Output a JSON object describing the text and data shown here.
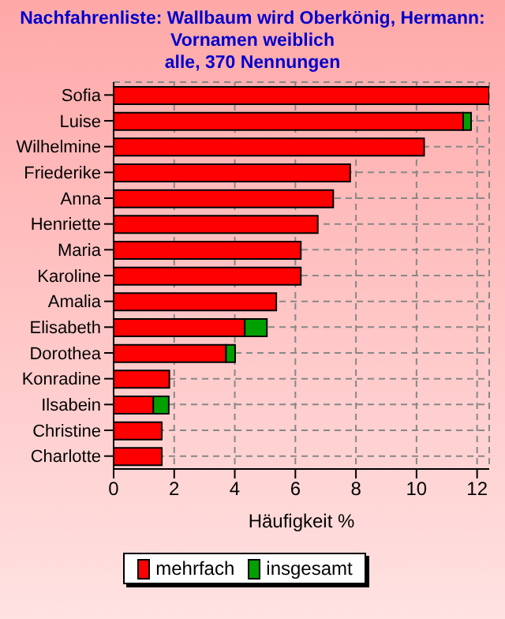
{
  "chart_data": {
    "type": "bar",
    "orientation": "horizontal",
    "stacked": true,
    "title": "Nachfahrenliste: Wallbaum wird Oberkönig, Hermann:",
    "subtitle": "Vornamen weiblich\nalle, 370 Nennungen",
    "xlabel": "Häufigkeit %",
    "categories": [
      "Sofia",
      "Luise",
      "Wilhelmine",
      "Friederike",
      "Anna",
      "Henriette",
      "Maria",
      "Karoline",
      "Amalia",
      "Elisabeth",
      "Dorothea",
      "Konradine",
      "Ilsabein",
      "Christine",
      "Charlotte"
    ],
    "series": [
      {
        "name": "mehrfach",
        "color": "#ff0000",
        "values": [
          12.4,
          11.54,
          10.25,
          7.81,
          7.25,
          6.74,
          6.18,
          6.18,
          5.37,
          4.33,
          3.71,
          1.84,
          1.31,
          1.59,
          1.59
        ]
      },
      {
        "name": "insgesamt",
        "color": "#00a000",
        "values": [
          0,
          0.26,
          0,
          0,
          0,
          0,
          0,
          0,
          0,
          0.73,
          0.3,
          0,
          0.51,
          0,
          0
        ]
      }
    ],
    "xlim": [
      0,
      12.4
    ],
    "xticks": [
      0,
      2,
      4,
      6,
      8,
      10,
      12
    ],
    "grid": true,
    "legend": "bottom"
  }
}
